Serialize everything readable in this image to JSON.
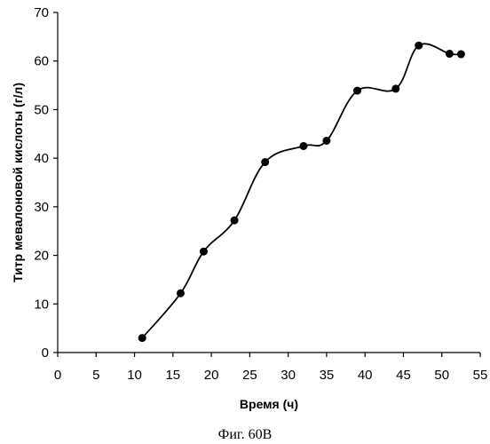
{
  "chart_data": {
    "type": "line",
    "xlabel": "Время (ч)",
    "ylabel": "Титр мевалоновой кислоты (г/л)",
    "xlim": [
      0,
      55
    ],
    "ylim": [
      0,
      70
    ],
    "xticks": [
      0,
      5,
      10,
      15,
      20,
      25,
      30,
      35,
      40,
      45,
      50,
      55
    ],
    "yticks": [
      0,
      10,
      20,
      30,
      40,
      50,
      60,
      70
    ],
    "grid": false,
    "smooth": true,
    "series": [
      {
        "x": [
          11,
          16,
          19,
          23,
          27,
          32,
          35,
          39,
          44,
          47,
          51,
          52.5
        ],
        "y": [
          3,
          12.2,
          20.8,
          27.2,
          39.2,
          42.5,
          43.6,
          53.9,
          54.3,
          63.2,
          61.5,
          61.4
        ],
        "color": "#000000"
      }
    ]
  },
  "caption": "Фиг. 60В"
}
